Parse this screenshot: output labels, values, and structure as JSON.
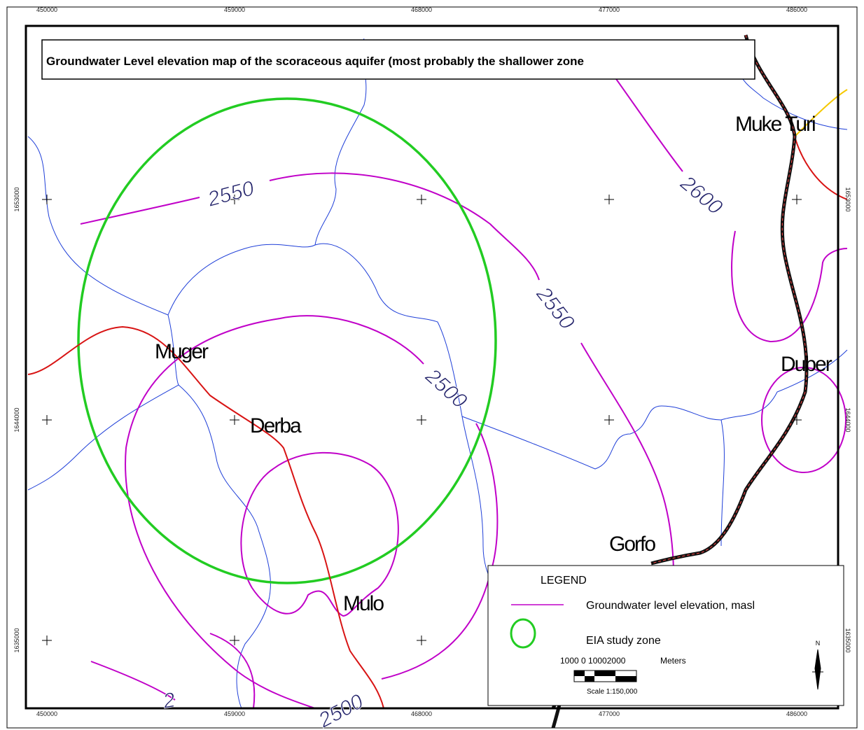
{
  "title": "Groundwater Level elevation map of the scoraceous aquifer (most probably the shallower zone",
  "grid_labels": {
    "top": [
      "450000",
      "459000",
      "468000",
      "477000",
      "486000"
    ],
    "bottom": [
      "450000",
      "459000",
      "468000",
      "477000",
      "486000"
    ],
    "left": [
      "1653000",
      "1644000",
      "1635000"
    ],
    "right": [
      "1653000",
      "1644000",
      "1635000"
    ]
  },
  "places": [
    "Muke Turi",
    "Muger",
    "Derba",
    "Duber",
    "Gorfo",
    "Mulo"
  ],
  "contour_labels": [
    "2550",
    "2600",
    "2550",
    "2500",
    "2500",
    "2"
  ],
  "legend": {
    "title": "LEGEND",
    "entries": [
      "Groundwater level elevation, masl",
      "EIA study zone"
    ],
    "scale_numbers": "1000   0  10002000",
    "scale_units": "Meters",
    "scale_ratio": "Scale 1:150,000",
    "north": "N"
  }
}
